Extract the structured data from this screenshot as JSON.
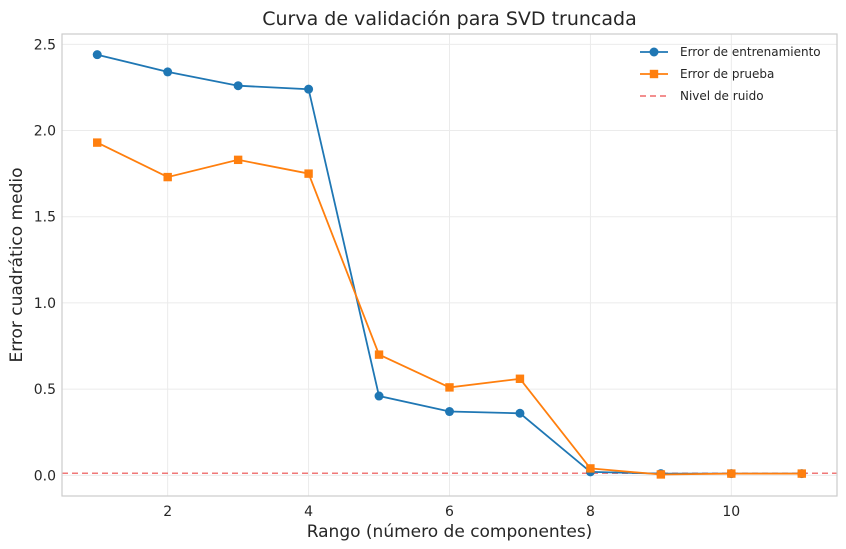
{
  "chart_data": {
    "type": "line",
    "title": "Curva de validación para SVD truncada",
    "xlabel": "Rango (número de componentes)",
    "ylabel": "Error cuadrático medio",
    "x": [
      1,
      2,
      3,
      4,
      5,
      6,
      7,
      8,
      9,
      10,
      11
    ],
    "xlim": [
      0.5,
      11.5
    ],
    "ylim": [
      -0.12,
      2.56
    ],
    "xticks": [
      2,
      4,
      6,
      8,
      10
    ],
    "xtick_labels": [
      "2",
      "4",
      "6",
      "8",
      "10"
    ],
    "yticks": [
      0.0,
      0.5,
      1.0,
      1.5,
      2.0,
      2.5
    ],
    "ytick_labels": [
      "0.0",
      "0.5",
      "1.0",
      "1.5",
      "2.0",
      "2.5"
    ],
    "grid": true,
    "legend_position": "top-right",
    "series": [
      {
        "name": "Error de entrenamiento",
        "color": "#1f77b4",
        "marker": "circle",
        "values": [
          2.44,
          2.34,
          2.26,
          2.24,
          0.46,
          0.37,
          0.36,
          0.02,
          0.01,
          0.01,
          0.01
        ]
      },
      {
        "name": "Error de prueba",
        "color": "#ff7f0e",
        "marker": "square",
        "values": [
          1.93,
          1.73,
          1.83,
          1.75,
          0.7,
          0.51,
          0.56,
          0.04,
          0.005,
          0.01,
          0.01
        ]
      }
    ],
    "reference_line": {
      "name": "Nivel de ruido",
      "color": "#ef6a6a",
      "style": "dashed",
      "y": 0.012
    }
  }
}
